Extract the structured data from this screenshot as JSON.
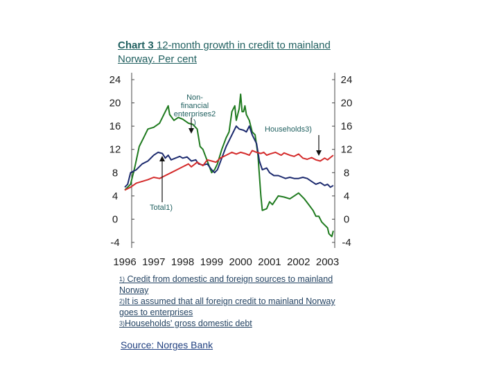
{
  "title": {
    "bold": "Chart 3",
    "rest": "12-month growth in credit to mainland Norway. Per cent"
  },
  "chart_data": {
    "type": "line",
    "ylim": [
      -4,
      24
    ],
    "yticks": [
      "24",
      "20",
      "16",
      "12",
      "8",
      "4",
      "0",
      "-4"
    ],
    "xlim": [
      1996,
      2003.25
    ],
    "xticks": [
      "1996",
      "1997",
      "1998",
      "1999",
      "2000",
      "2001",
      "2002",
      "2003"
    ],
    "annotations": [
      {
        "text_lines": [
          "Non-",
          "financial",
          "enterprises2",
          ")"
        ]
      },
      {
        "text": "Households3)"
      },
      {
        "text": "Total1)"
      }
    ],
    "series": [
      {
        "color": "#1e7a1e",
        "points": [
          [
            1996.0,
            5.0
          ],
          [
            1996.2,
            6.0
          ],
          [
            1996.35,
            9.0
          ],
          [
            1996.5,
            12.5
          ],
          [
            1996.65,
            14.0
          ],
          [
            1996.8,
            15.5
          ],
          [
            1997.0,
            15.8
          ],
          [
            1997.2,
            16.5
          ],
          [
            1997.35,
            18.0
          ],
          [
            1997.5,
            19.5
          ],
          [
            1997.55,
            18.0
          ],
          [
            1997.7,
            17.0
          ],
          [
            1997.85,
            17.5
          ],
          [
            1998.0,
            17.2
          ],
          [
            1998.2,
            16.5
          ],
          [
            1998.35,
            16.3
          ],
          [
            1998.5,
            15.5
          ],
          [
            1998.6,
            12.5
          ],
          [
            1998.7,
            12.0
          ],
          [
            1998.85,
            10.0
          ],
          [
            1999.0,
            8.0
          ],
          [
            1999.1,
            8.5
          ],
          [
            1999.2,
            9.5
          ],
          [
            1999.35,
            12.0
          ],
          [
            1999.5,
            14.0
          ],
          [
            1999.6,
            15.0
          ],
          [
            1999.7,
            18.5
          ],
          [
            1999.8,
            19.5
          ],
          [
            1999.85,
            17.0
          ],
          [
            1999.95,
            19.0
          ],
          [
            2000.0,
            21.5
          ],
          [
            2000.05,
            18.5
          ],
          [
            2000.1,
            18.5
          ],
          [
            2000.15,
            19.5
          ],
          [
            2000.2,
            18.0
          ],
          [
            2000.3,
            17.0
          ],
          [
            2000.4,
            15.0
          ],
          [
            2000.5,
            14.5
          ],
          [
            2000.6,
            11.0
          ],
          [
            2000.7,
            4.0
          ],
          [
            2000.75,
            1.5
          ],
          [
            2000.9,
            1.8
          ],
          [
            2001.0,
            3.0
          ],
          [
            2001.1,
            2.5
          ],
          [
            2001.3,
            4.0
          ],
          [
            2001.5,
            3.8
          ],
          [
            2001.7,
            3.5
          ],
          [
            2001.85,
            4.0
          ],
          [
            2002.0,
            4.5
          ],
          [
            2002.2,
            3.5
          ],
          [
            2002.35,
            2.5
          ],
          [
            2002.5,
            1.5
          ],
          [
            2002.6,
            0.5
          ],
          [
            2002.7,
            0.5
          ],
          [
            2002.8,
            -0.5
          ],
          [
            2002.9,
            -1.0
          ],
          [
            2003.0,
            -1.5
          ],
          [
            2003.05,
            -2.5
          ],
          [
            2003.15,
            -3.0
          ],
          [
            2003.2,
            -2.0
          ]
        ]
      },
      {
        "color": "#1c2a6e",
        "points": [
          [
            1996.0,
            5.5
          ],
          [
            1996.1,
            6.0
          ],
          [
            1996.2,
            8.0
          ],
          [
            1996.4,
            8.5
          ],
          [
            1996.6,
            9.5
          ],
          [
            1996.8,
            10.0
          ],
          [
            1997.0,
            11.0
          ],
          [
            1997.15,
            11.5
          ],
          [
            1997.3,
            11.3
          ],
          [
            1997.4,
            10.5
          ],
          [
            1997.5,
            11.0
          ],
          [
            1997.6,
            10.2
          ],
          [
            1997.75,
            10.5
          ],
          [
            1997.9,
            10.8
          ],
          [
            1998.0,
            10.5
          ],
          [
            1998.15,
            10.7
          ],
          [
            1998.3,
            10.0
          ],
          [
            1998.45,
            10.2
          ],
          [
            1998.55,
            9.5
          ],
          [
            1998.7,
            9.3
          ],
          [
            1998.85,
            9.5
          ],
          [
            1999.0,
            8.5
          ],
          [
            1999.1,
            8.0
          ],
          [
            1999.2,
            8.5
          ],
          [
            1999.35,
            10.5
          ],
          [
            1999.5,
            12.5
          ],
          [
            1999.6,
            13.5
          ],
          [
            1999.75,
            15.0
          ],
          [
            1999.85,
            16.0
          ],
          [
            1999.95,
            15.5
          ],
          [
            2000.1,
            15.3
          ],
          [
            2000.2,
            15.0
          ],
          [
            2000.3,
            16.0
          ],
          [
            2000.4,
            14.5
          ],
          [
            2000.55,
            13.0
          ],
          [
            2000.65,
            10.0
          ],
          [
            2000.75,
            8.5
          ],
          [
            2000.9,
            8.8
          ],
          [
            2001.0,
            8.0
          ],
          [
            2001.15,
            7.5
          ],
          [
            2001.3,
            7.5
          ],
          [
            2001.45,
            7.2
          ],
          [
            2001.55,
            7.0
          ],
          [
            2001.7,
            7.2
          ],
          [
            2001.85,
            7.0
          ],
          [
            2002.0,
            7.0
          ],
          [
            2002.15,
            7.2
          ],
          [
            2002.3,
            7.0
          ],
          [
            2002.45,
            6.5
          ],
          [
            2002.6,
            6.0
          ],
          [
            2002.75,
            6.3
          ],
          [
            2002.9,
            5.8
          ],
          [
            2003.0,
            6.0
          ],
          [
            2003.1,
            5.5
          ],
          [
            2003.2,
            5.8
          ]
        ]
      },
      {
        "color": "#d42a2a",
        "points": [
          [
            1996.0,
            5.0
          ],
          [
            1996.2,
            5.5
          ],
          [
            1996.4,
            6.2
          ],
          [
            1996.6,
            6.5
          ],
          [
            1996.8,
            6.8
          ],
          [
            1997.0,
            7.2
          ],
          [
            1997.2,
            7.0
          ],
          [
            1997.4,
            7.5
          ],
          [
            1997.6,
            8.0
          ],
          [
            1997.8,
            8.5
          ],
          [
            1998.0,
            9.0
          ],
          [
            1998.2,
            9.5
          ],
          [
            1998.3,
            9.0
          ],
          [
            1998.5,
            9.8
          ],
          [
            1998.7,
            9.2
          ],
          [
            1998.85,
            10.2
          ],
          [
            1999.0,
            10.0
          ],
          [
            1999.15,
            9.8
          ],
          [
            1999.3,
            10.5
          ],
          [
            1999.5,
            11.0
          ],
          [
            1999.7,
            11.5
          ],
          [
            1999.85,
            11.2
          ],
          [
            2000.0,
            11.5
          ],
          [
            2000.15,
            11.3
          ],
          [
            2000.3,
            11.0
          ],
          [
            2000.4,
            11.8
          ],
          [
            2000.55,
            11.5
          ],
          [
            2000.7,
            11.3
          ],
          [
            2000.8,
            11.5
          ],
          [
            2000.9,
            11.0
          ],
          [
            2001.0,
            11.2
          ],
          [
            2001.2,
            11.5
          ],
          [
            2001.4,
            11.0
          ],
          [
            2001.5,
            11.4
          ],
          [
            2001.7,
            11.0
          ],
          [
            2001.85,
            10.8
          ],
          [
            2002.0,
            11.2
          ],
          [
            2002.15,
            10.5
          ],
          [
            2002.3,
            10.3
          ],
          [
            2002.45,
            10.6
          ],
          [
            2002.6,
            10.2
          ],
          [
            2002.75,
            10.0
          ],
          [
            2002.9,
            10.5
          ],
          [
            2003.0,
            10.2
          ],
          [
            2003.1,
            10.6
          ],
          [
            2003.2,
            11.0
          ]
        ]
      }
    ]
  },
  "footnotes": [
    {
      "mark": "1)",
      "text": " Credit from domestic and foreign sources to mainland Norway"
    },
    {
      "mark": "2)",
      "text": "It is assumed that all foreign credit to mainland Norway goes to enterprises"
    },
    {
      "mark": "3)",
      "text": "Households' gross domestic debt"
    }
  ],
  "source": "Source: Norges Bank"
}
